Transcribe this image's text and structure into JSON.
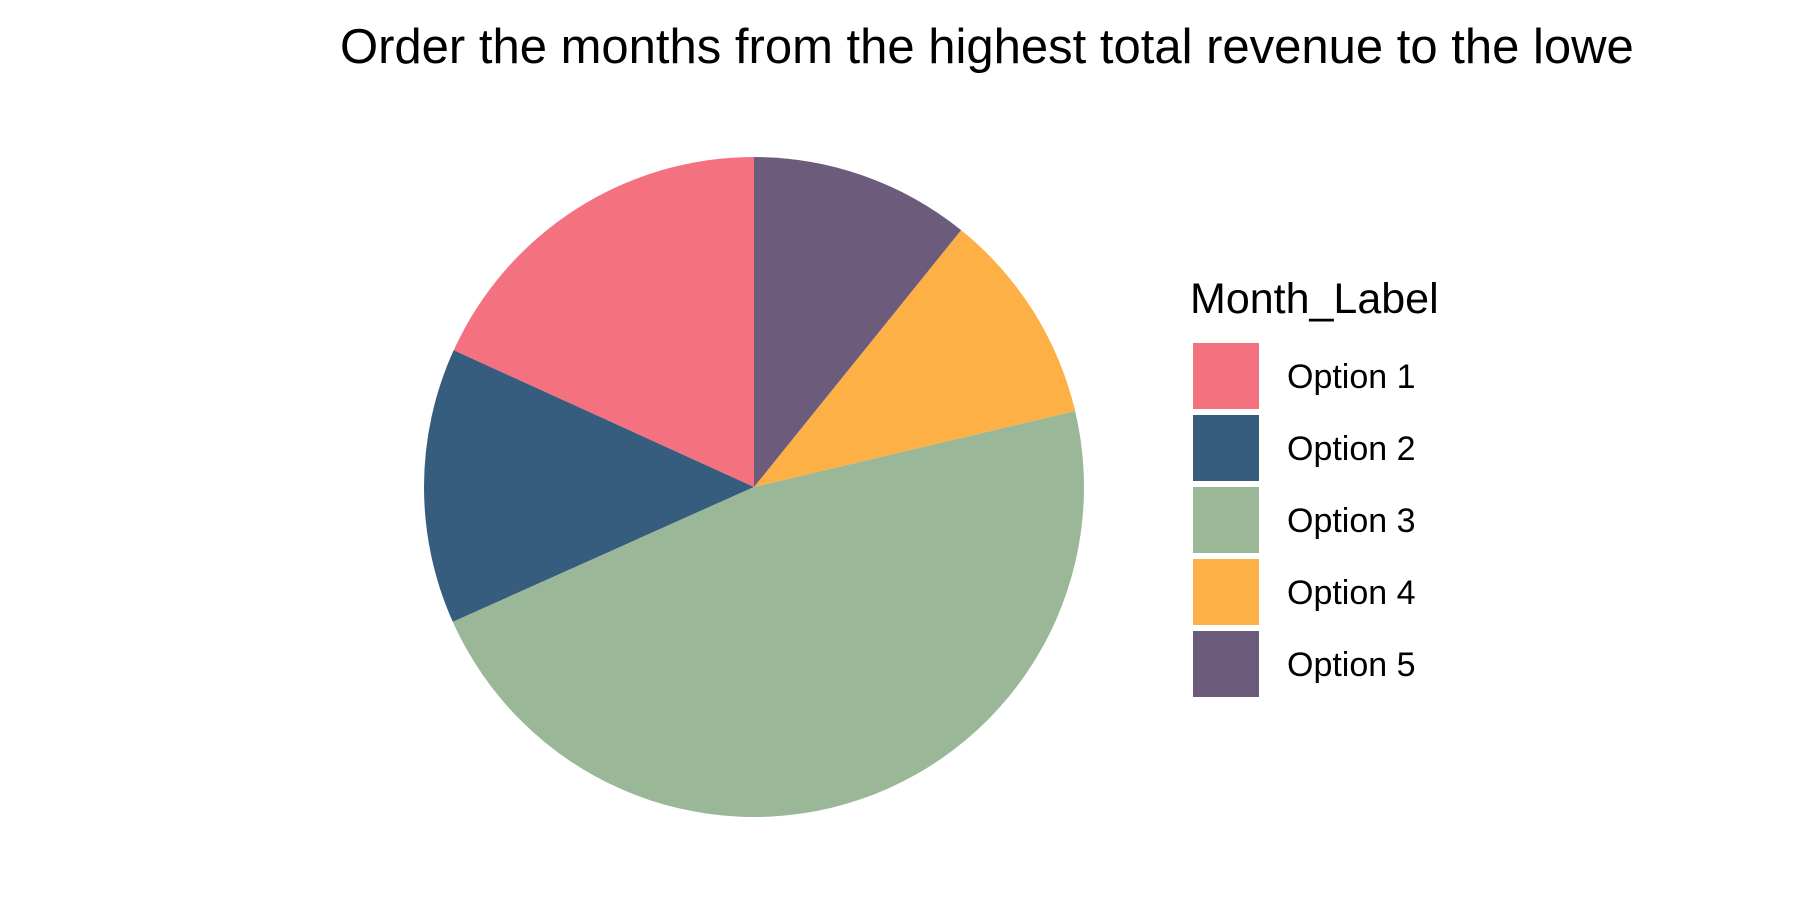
{
  "chart_data": {
    "type": "pie",
    "title": "Order the months from the highest total revenue to the lowe",
    "legend_title": "Month_Label",
    "legend_position": "right",
    "slices": [
      {
        "label": "Option 1",
        "value": 18.2,
        "color": "#F47280"
      },
      {
        "label": "Option 2",
        "value": 13.5,
        "color": "#365C7E"
      },
      {
        "label": "Option 3",
        "value": 47.0,
        "color": "#9AB898"
      },
      {
        "label": "Option 4",
        "value": 10.5,
        "color": "#FDB045"
      },
      {
        "label": "Option 5",
        "value": 10.8,
        "color": "#6C5B7B"
      }
    ]
  }
}
